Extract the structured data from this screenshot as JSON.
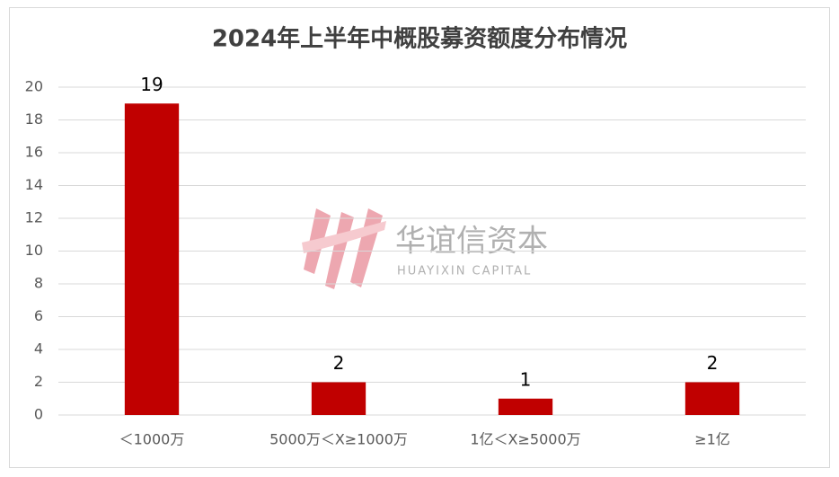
{
  "chart_data": {
    "type": "bar",
    "title": "2024年上半年中概股募资额度分布情况",
    "categories": [
      "＜1000万",
      "5000万＜X≥1000万",
      "1亿＜X≥5000万",
      "≥1亿"
    ],
    "values": [
      19,
      2,
      1,
      2
    ],
    "color": "#c00000",
    "ylim": [
      0,
      20
    ],
    "yticks": [
      0,
      2,
      4,
      6,
      8,
      10,
      12,
      14,
      16,
      18,
      20
    ],
    "grid": true,
    "watermark": {
      "name": "华谊信资本",
      "subtitle": "HUAYIXIN CAPITAL"
    }
  }
}
